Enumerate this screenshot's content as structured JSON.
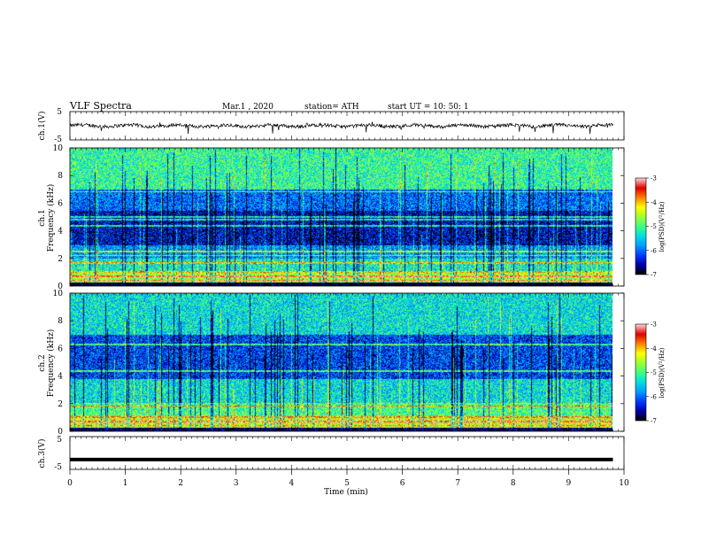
{
  "header": {
    "title": "VLF  Spectra",
    "date": "Mar.1  , 2020",
    "station": "station= ATH",
    "start_ut": "start  UT  =    10: 50: 1"
  },
  "labels": {
    "ch1_wave": "ch.1(V)",
    "ch1_spec_top": "ch.1",
    "freq": "Frequency  (kHz)",
    "ch2_spec_top": "ch.2",
    "ch3_wave": "ch.3(V)",
    "xlabel": "Time  (min)",
    "colorbar": "log(PSD)(V²/Hz)"
  },
  "colors": {
    "colormap": [
      "#000000",
      "#0000b0",
      "#0040ff",
      "#00a0ff",
      "#00e0e0",
      "#40ff80",
      "#a0ff30",
      "#ffff00",
      "#ff8000",
      "#e00000",
      "#ffd0d0"
    ]
  },
  "chart_data": [
    {
      "type": "line",
      "panel": "ch.1 waveform",
      "ylabel": "ch.1(V)",
      "ylim": [
        -5,
        5
      ],
      "yticks": [
        "5",
        "-5"
      ],
      "xlim": [
        0,
        10
      ],
      "description_values": {
        "mean": 0,
        "typical_range": [
          -0.8,
          0.8
        ],
        "spike_min": -3
      }
    },
    {
      "type": "heatmap",
      "panel": "ch.1 spectrogram",
      "ylabel": "Frequency  (kHz)",
      "ylim": [
        0,
        10
      ],
      "yticks": [
        "0",
        "2",
        "4",
        "6",
        "8",
        "10"
      ],
      "xlim": [
        0,
        10
      ],
      "zlabel": "log(PSD)(V²/Hz)",
      "zlim": [
        -7,
        -3
      ],
      "zticks": [
        "-3",
        "-4",
        "-5",
        "-6",
        "-7"
      ],
      "band_levels": [
        {
          "f": [
            0.0,
            0.3
          ],
          "logpsd": -7.0
        },
        {
          "f": [
            0.3,
            1.0
          ],
          "logpsd": -4.6
        },
        {
          "f": [
            1.0,
            2.0
          ],
          "logpsd": -5.3
        },
        {
          "f": [
            2.0,
            3.0
          ],
          "logpsd": -5.8
        },
        {
          "f": [
            3.0,
            5.5
          ],
          "logpsd": -6.5
        },
        {
          "f": [
            5.5,
            7.0
          ],
          "logpsd": -6.0
        },
        {
          "f": [
            7.0,
            10.0
          ],
          "logpsd": -5.1
        }
      ],
      "lines_kHz": [
        0.45,
        0.75,
        1.05,
        1.7,
        2.25,
        2.55,
        4.4,
        4.85,
        5.05,
        6.85
      ]
    },
    {
      "type": "heatmap",
      "panel": "ch.2 spectrogram",
      "ylabel": "Frequency  (kHz)",
      "ylim": [
        0,
        10
      ],
      "yticks": [
        "0",
        "2",
        "4",
        "6",
        "8",
        "10"
      ],
      "xlim": [
        0,
        10
      ],
      "zlabel": "log(PSD)(V²/Hz)",
      "zlim": [
        -7,
        -3
      ],
      "zticks": [
        "-3",
        "-4",
        "-5",
        "-6",
        "-7"
      ],
      "band_levels": [
        {
          "f": [
            0.0,
            0.3
          ],
          "logpsd": -6.8
        },
        {
          "f": [
            0.3,
            1.0
          ],
          "logpsd": -4.4
        },
        {
          "f": [
            1.0,
            2.0
          ],
          "logpsd": -5.0
        },
        {
          "f": [
            2.0,
            3.8
          ],
          "logpsd": -5.4
        },
        {
          "f": [
            3.8,
            5.5
          ],
          "logpsd": -6.2
        },
        {
          "f": [
            5.5,
            7.0
          ],
          "logpsd": -6.2
        },
        {
          "f": [
            7.0,
            10.0
          ],
          "logpsd": -5.4
        }
      ],
      "lines_kHz": [
        0.45,
        0.75,
        1.05,
        1.85,
        2.05,
        4.4,
        6.3
      ]
    },
    {
      "type": "line",
      "panel": "ch.3 waveform",
      "ylabel": "ch.3(V)",
      "ylim": [
        -5,
        5
      ],
      "yticks": [
        "5",
        "-5"
      ],
      "xlim": [
        0,
        10
      ],
      "xlabel": "Time  (min)",
      "xticks": [
        "0",
        "1",
        "2",
        "3",
        "4",
        "5",
        "6",
        "7",
        "8",
        "9",
        "10"
      ],
      "description_values": {
        "constant_level": -2
      }
    }
  ]
}
